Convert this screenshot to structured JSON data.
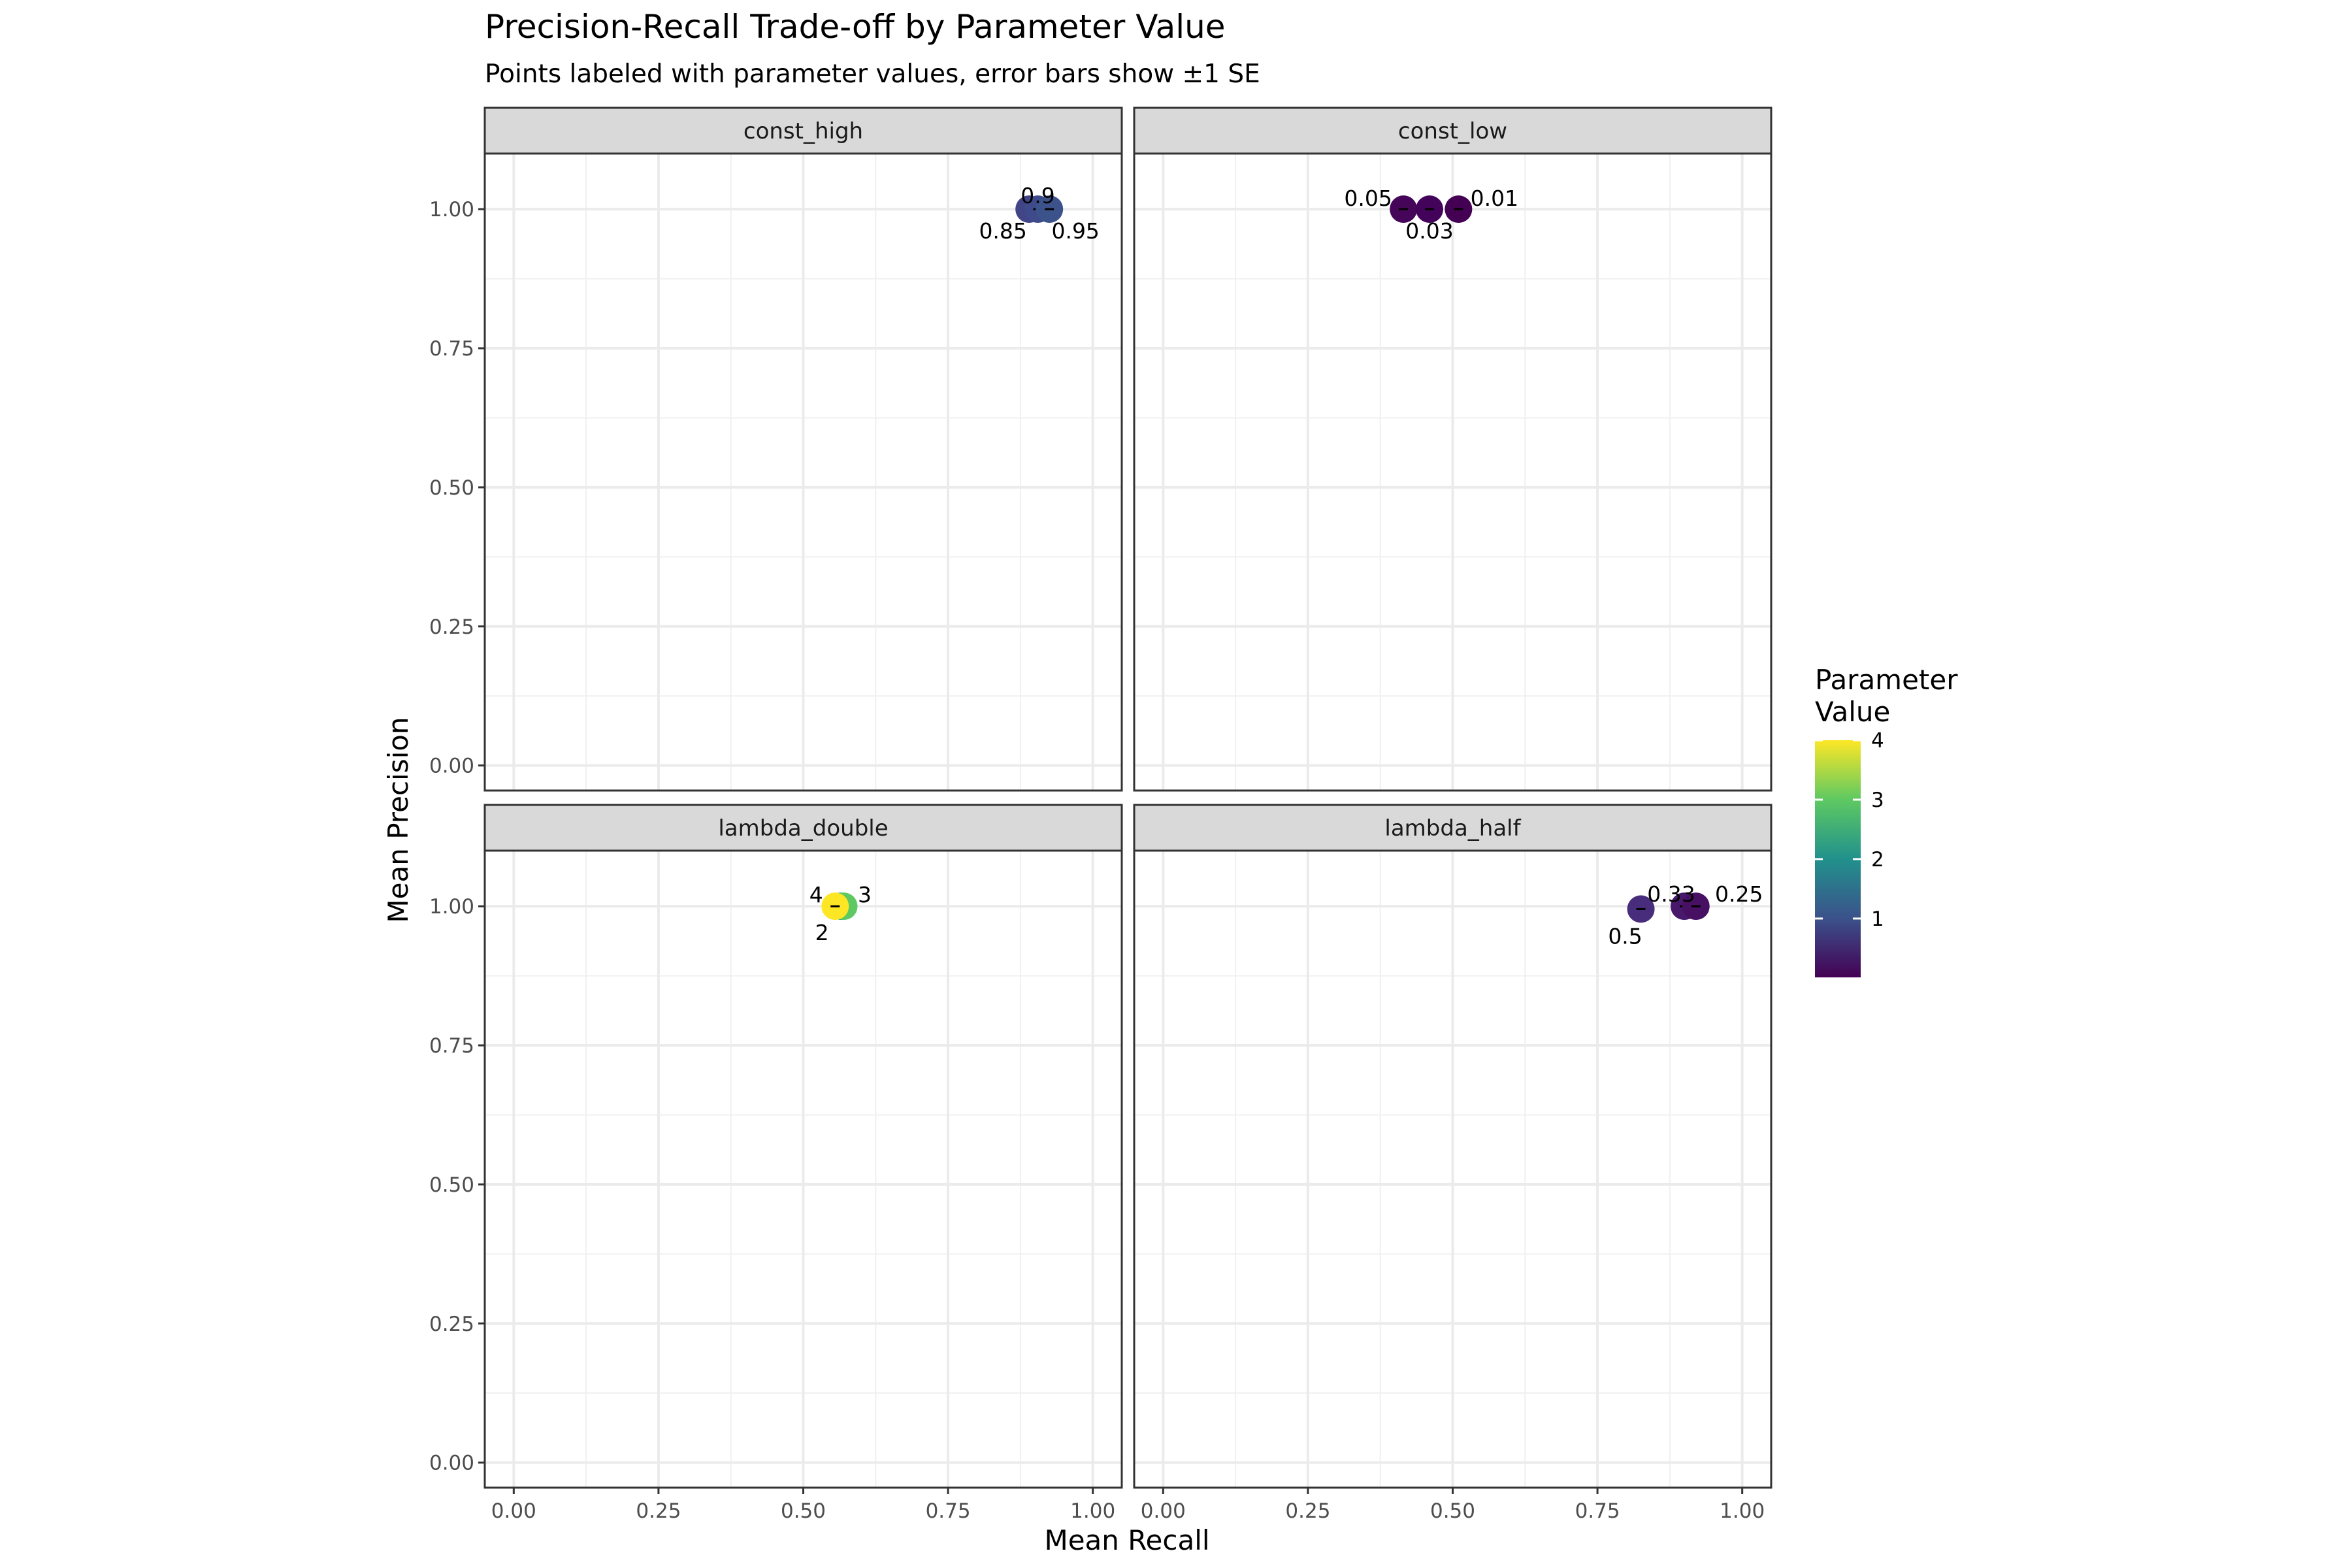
{
  "chart_data": {
    "type": "scatter",
    "title": "Precision-Recall Trade-off by Parameter Value",
    "subtitle": "Points labeled with parameter values, error bars show ±1 SE",
    "xlabel": "Mean Recall",
    "ylabel": "Mean Precision",
    "xlim": [
      -0.05,
      1.05
    ],
    "ylim": [
      -0.045,
      1.1
    ],
    "x_ticks": [
      "0.00",
      "0.25",
      "0.50",
      "0.75",
      "1.00"
    ],
    "y_ticks": [
      "0.00",
      "0.25",
      "0.50",
      "0.75",
      "1.00"
    ],
    "grid": true,
    "legend": {
      "title_lines": [
        "Parameter",
        "Value"
      ],
      "ticks": [
        "1",
        "2",
        "3",
        "4"
      ],
      "range": [
        0.01,
        4
      ],
      "placement": "right",
      "colors": [
        "#440154",
        "#3b528b",
        "#21918c",
        "#5ec962",
        "#fde725"
      ]
    },
    "panels": [
      {
        "name": "const_high",
        "points": [
          {
            "label": "0.85",
            "x": 0.89,
            "y": 1.0,
            "value": 0.85,
            "color": "#414487"
          },
          {
            "label": "0.9",
            "x": 0.905,
            "y": 1.0,
            "value": 0.9,
            "color": "#3e4a89"
          },
          {
            "label": "0.95",
            "x": 0.925,
            "y": 1.0,
            "value": 0.95,
            "color": "#3b528b"
          }
        ]
      },
      {
        "name": "const_low",
        "points": [
          {
            "label": "0.05",
            "x": 0.415,
            "y": 1.0,
            "value": 0.05,
            "color": "#450559"
          },
          {
            "label": "0.03",
            "x": 0.46,
            "y": 1.0,
            "value": 0.03,
            "color": "#44035a"
          },
          {
            "label": "0.01",
            "x": 0.51,
            "y": 1.0,
            "value": 0.01,
            "color": "#440154"
          }
        ]
      },
      {
        "name": "lambda_double",
        "points": [
          {
            "label": "2",
            "x": 0.565,
            "y": 1.0,
            "value": 2,
            "color": "#21918c"
          },
          {
            "label": "3",
            "x": 0.57,
            "y": 1.0,
            "value": 3,
            "color": "#5ec962"
          },
          {
            "label": "4",
            "x": 0.555,
            "y": 1.0,
            "value": 4,
            "color": "#fde725"
          }
        ]
      },
      {
        "name": "lambda_half",
        "points": [
          {
            "label": "0.5",
            "x": 0.825,
            "y": 0.995,
            "value": 0.5,
            "color": "#472d7b"
          },
          {
            "label": "0.33",
            "x": 0.9,
            "y": 1.0,
            "value": 0.33,
            "color": "#48186a"
          },
          {
            "label": "0.25",
            "x": 0.92,
            "y": 1.0,
            "value": 0.25,
            "color": "#471063"
          }
        ]
      }
    ]
  }
}
